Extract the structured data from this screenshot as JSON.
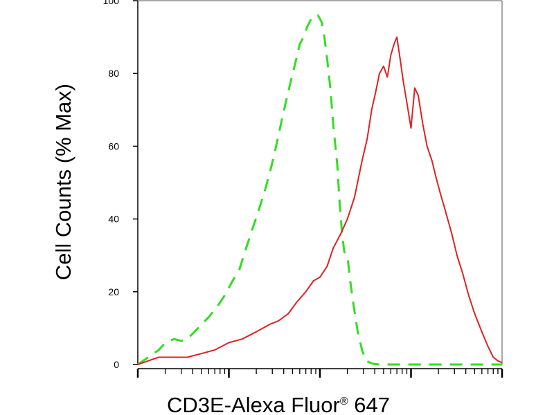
{
  "chart_data": {
    "type": "line",
    "title": "",
    "xlabel": "CD3E-Alexa Fluor",
    "xlabel_mark": "®",
    "xlabel_suffix": " 647",
    "ylabel": "Cell Counts (% Max)",
    "x_scale": "log",
    "xlim": [
      1,
      10000
    ],
    "ylim": [
      0,
      100
    ],
    "y_ticks": [
      "0",
      "20",
      "40",
      "60",
      "80",
      "100"
    ],
    "grid": false,
    "legend": "none",
    "series": [
      {
        "style": "dashed",
        "color": "#33dd22",
        "x": [
          1.0,
          1.3,
          1.7,
          2.0,
          2.5,
          3.0,
          3.5,
          4.2,
          5.0,
          6.0,
          7.5,
          9.0,
          11,
          13,
          15,
          18,
          21,
          25,
          29,
          33,
          38,
          43,
          48,
          55,
          60,
          66,
          73,
          80,
          88,
          95,
          105,
          112,
          120,
          130,
          140,
          155,
          165,
          175,
          185,
          200,
          215,
          235,
          260,
          290,
          320,
          380,
          450,
          600,
          800,
          1000,
          2000,
          5000,
          10000
        ],
        "y": [
          0,
          2,
          4,
          6,
          7,
          6.5,
          7,
          9,
          11,
          13,
          16,
          19,
          23,
          26,
          31,
          37,
          42,
          48,
          54,
          60,
          67,
          73,
          78,
          84,
          88,
          90,
          93,
          95,
          96,
          96,
          94,
          90,
          84,
          76,
          66,
          55,
          44,
          36,
          31,
          30,
          23,
          16,
          9,
          4,
          1,
          0.2,
          0,
          0,
          0,
          0,
          0,
          0,
          0
        ]
      },
      {
        "style": "solid",
        "color": "#dd2222",
        "x": [
          1.0,
          1.3,
          1.7,
          2.5,
          3.5,
          5.0,
          7.0,
          10,
          14,
          20,
          28,
          35,
          45,
          55,
          70,
          85,
          100,
          120,
          140,
          170,
          200,
          240,
          290,
          330,
          370,
          410,
          450,
          500,
          550,
          600,
          650,
          700,
          760,
          820,
          900,
          1000,
          1100,
          1200,
          1350,
          1500,
          1700,
          1900,
          2100,
          2400,
          2800,
          3200,
          3700,
          4300,
          5000,
          6000,
          7000,
          8000,
          9000,
          10000
        ],
        "y": [
          0,
          1,
          2,
          2,
          2,
          3,
          4,
          6,
          7,
          9,
          11,
          12,
          14,
          17,
          20,
          23,
          24,
          27,
          32,
          36,
          40,
          46,
          56,
          62,
          70,
          75,
          80,
          82,
          79,
          85,
          88,
          90,
          84,
          78,
          72,
          65,
          76,
          74,
          66,
          60,
          56,
          51,
          47,
          42,
          36,
          30,
          25,
          19,
          14,
          9,
          5,
          2,
          1,
          0.5
        ]
      }
    ]
  }
}
